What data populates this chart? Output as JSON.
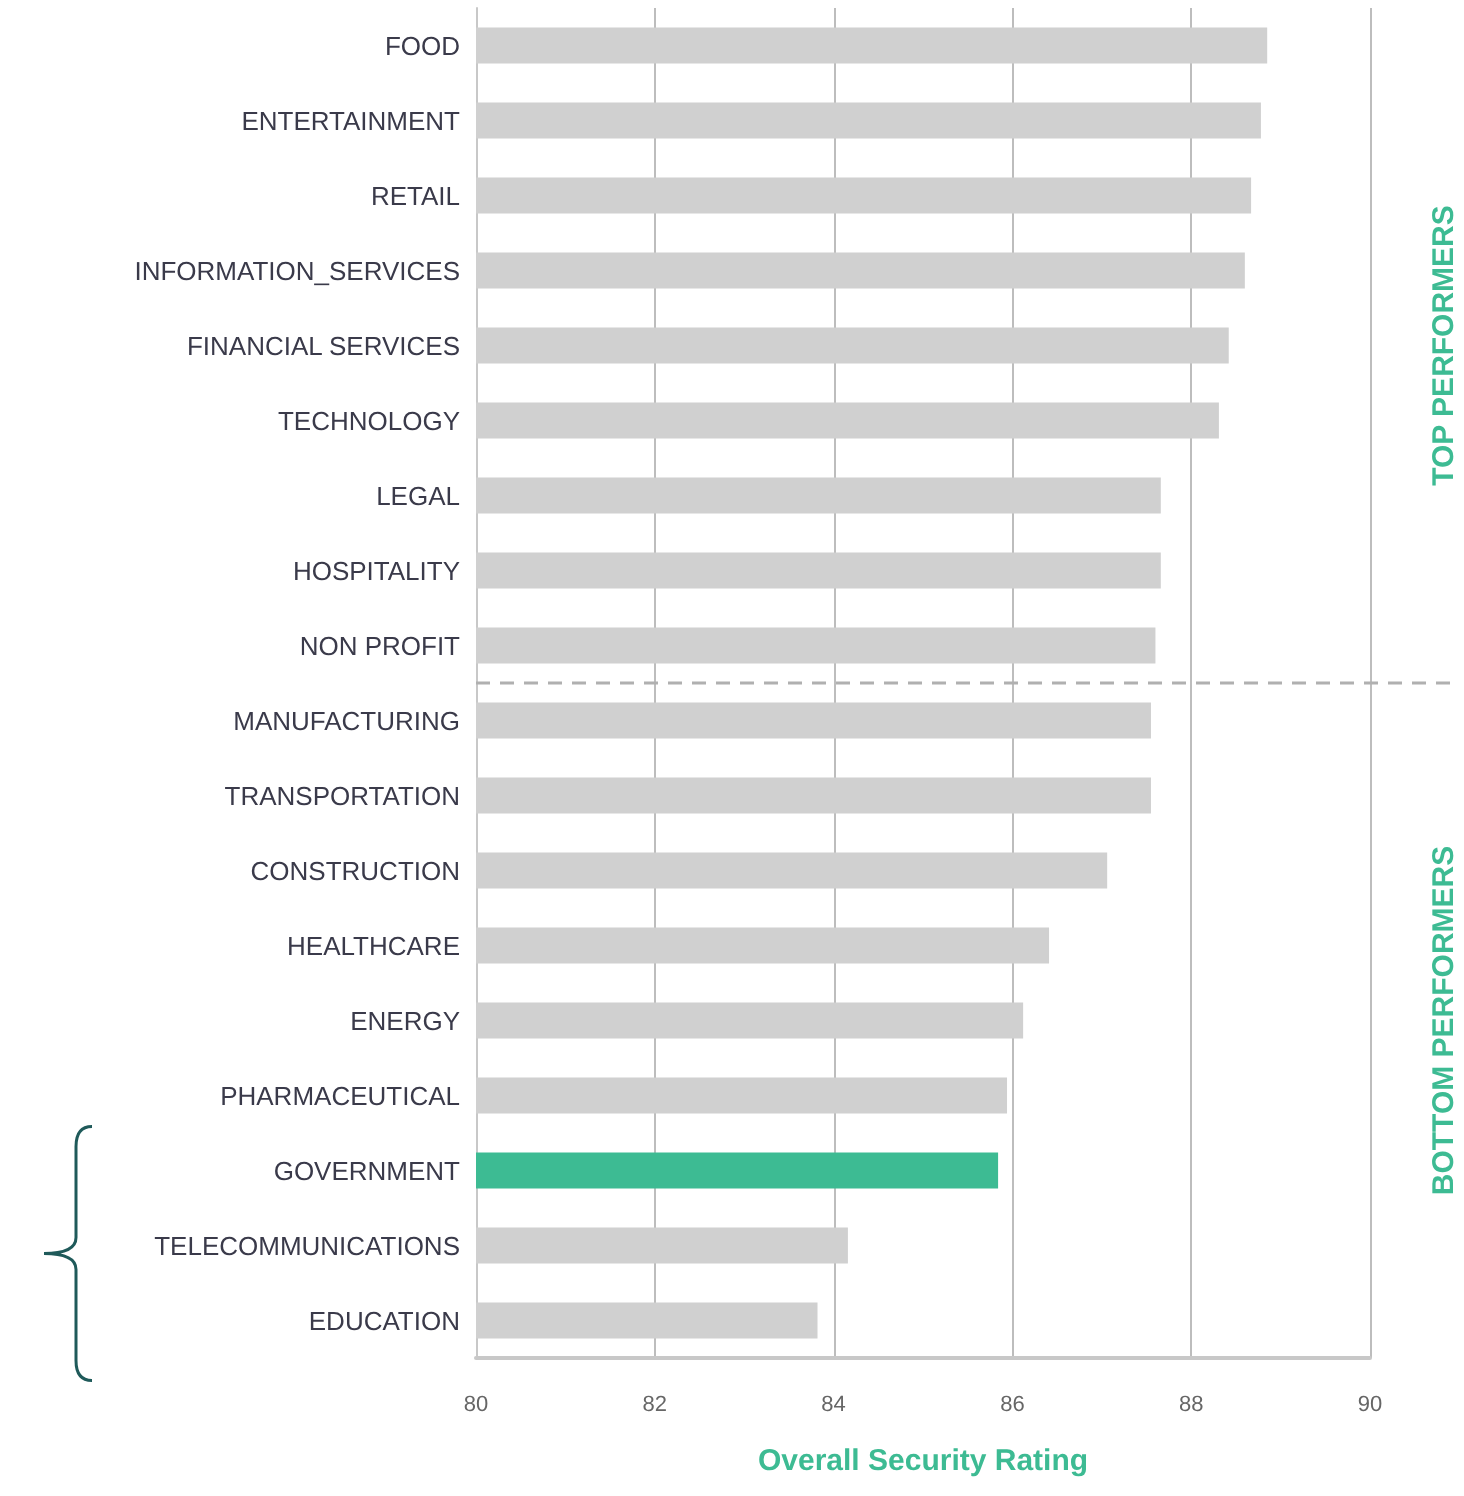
{
  "chart_data": {
    "type": "bar",
    "orientation": "horizontal",
    "xlabel": "Overall Security Rating",
    "categories": [
      "FOOD",
      "ENTERTAINMENT",
      "RETAIL",
      "INFORMATION_SERVICES",
      "FINANCIAL SERVICES",
      "TECHNOLOGY",
      "LEGAL",
      "HOSPITALITY",
      "NON PROFIT",
      "MANUFACTURING",
      "TRANSPORTATION",
      "CONSTRUCTION",
      "HEALTHCARE",
      "ENERGY",
      "PHARMACEUTICAL",
      "GOVERNMENT",
      "TELECOMMUNICATIONS",
      "EDUCATION"
    ],
    "values": [
      88.85,
      88.78,
      88.67,
      88.6,
      88.42,
      88.31,
      87.66,
      87.66,
      87.6,
      87.55,
      87.55,
      87.06,
      86.41,
      86.12,
      85.94,
      85.84,
      84.16,
      83.82
    ],
    "colors": [
      "#d0d0d0",
      "#d0d0d0",
      "#d0d0d0",
      "#d0d0d0",
      "#d0d0d0",
      "#d0d0d0",
      "#d0d0d0",
      "#d0d0d0",
      "#d0d0d0",
      "#d0d0d0",
      "#d0d0d0",
      "#d0d0d0",
      "#d0d0d0",
      "#d0d0d0",
      "#d0d0d0",
      "#3dbb93",
      "#d0d0d0",
      "#d0d0d0"
    ],
    "xlim": [
      80,
      90
    ],
    "xticks": [
      80,
      82,
      84,
      86,
      88,
      90
    ],
    "grid": "x",
    "annotations": [
      "TOP PERFORMERS",
      "BOTTOM PERFORMERS"
    ]
  }
}
